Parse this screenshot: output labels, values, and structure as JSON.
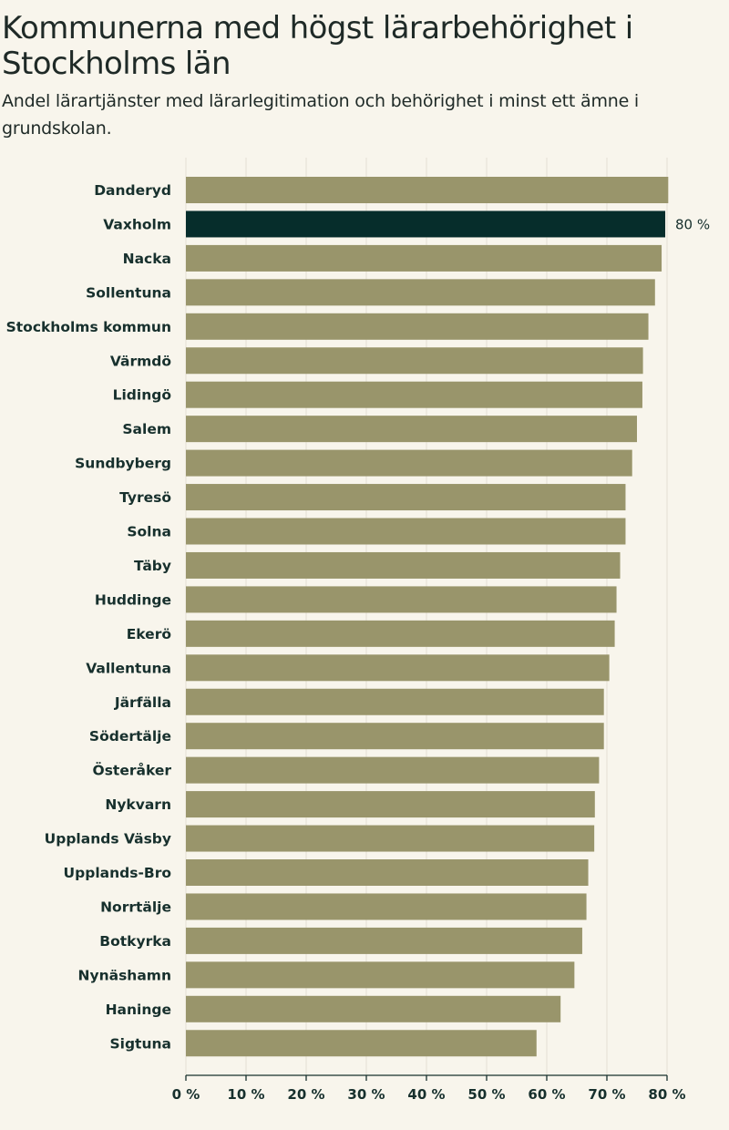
{
  "header": {
    "title": "Kommunerna med högst lärarbehörighet i Stockholms län",
    "subtitle": "Andel lärartjänster med lärarlegitimation och behörighet i minst ett ämne i grundskolan."
  },
  "colors": {
    "bar": "#99956b",
    "highlight": "#062d2b",
    "grid": "#e4e0d4",
    "background": "#f8f5ec"
  },
  "chart_data": {
    "type": "bar",
    "orientation": "horizontal",
    "title": "Kommunerna med högst lärarbehörighet i Stockholms län",
    "subtitle": "Andel lärartjänster med lärarlegitimation och behörighet i minst ett ämne i grundskolan.",
    "xlabel": "",
    "ylabel": "",
    "xlim": [
      0,
      80
    ],
    "ticks": [
      0,
      10,
      20,
      30,
      40,
      50,
      60,
      70,
      80
    ],
    "tick_labels": [
      "0 %",
      "10 %",
      "20 %",
      "30 %",
      "40 %",
      "50 %",
      "60 %",
      "70 %",
      "80 %"
    ],
    "grid": true,
    "highlight": "Vaxholm",
    "categories": [
      "Danderyd",
      "Vaxholm",
      "Nacka",
      "Sollentuna",
      "Stockholms kommun",
      "Värmdö",
      "Lidingö",
      "Salem",
      "Sundbyberg",
      "Tyresö",
      "Solna",
      "Täby",
      "Huddinge",
      "Ekerö",
      "Vallentuna",
      "Järfälla",
      "Södertälje",
      "Österåker",
      "Nykvarn",
      "Upplands Väsby",
      "Upplands-Bro",
      "Norrtälje",
      "Botkyrka",
      "Nynäshamn",
      "Haninge",
      "Sigtuna"
    ],
    "values": [
      80.2,
      79.7,
      79.1,
      78.0,
      76.9,
      76.0,
      75.9,
      75.0,
      74.2,
      73.1,
      73.1,
      72.2,
      71.6,
      71.3,
      70.4,
      69.5,
      69.5,
      68.7,
      68.0,
      67.9,
      66.9,
      66.6,
      65.9,
      64.6,
      62.3,
      58.3
    ],
    "data_labels": [
      {
        "category": "Vaxholm",
        "text": "80 %"
      }
    ]
  }
}
